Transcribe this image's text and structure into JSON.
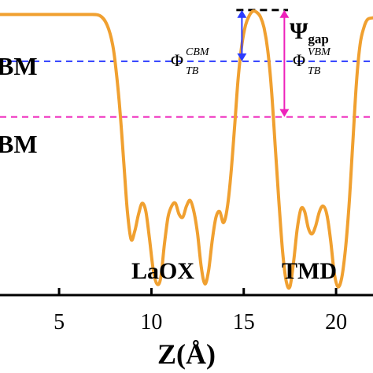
{
  "chart_data": {
    "type": "line",
    "xlabel": "Z(Å)",
    "ylabel": "",
    "xlim": [
      1.8,
      22.0
    ],
    "ylim": [
      -4.2,
      1.1
    ],
    "x_ticks": [
      5,
      10,
      15,
      20
    ],
    "x_tick_labels": [
      "5",
      "10",
      "15",
      "20"
    ],
    "grid": false,
    "series": [
      {
        "color": "#f0a030",
        "x": [
          1.8,
          2.5,
          3.5,
          4.5,
          5.5,
          6.5,
          7.2,
          7.6,
          7.9,
          8.1,
          8.3,
          8.5,
          8.7,
          8.9,
          9.1,
          9.3,
          9.5,
          9.7,
          9.9,
          10.1,
          10.3,
          10.5,
          10.7,
          10.9,
          11.1,
          11.3,
          11.5,
          11.7,
          11.9,
          12.1,
          12.3,
          12.5,
          12.7,
          12.9,
          13.1,
          13.3,
          13.5,
          13.7,
          13.9,
          14.1,
          14.3,
          14.5,
          14.7,
          14.9,
          15.1,
          15.3,
          15.5,
          15.7,
          15.9,
          16.1,
          16.3,
          16.5,
          16.7,
          16.9,
          17.1,
          17.3,
          17.5,
          17.7,
          17.9,
          18.1,
          18.3,
          18.5,
          18.7,
          18.9,
          19.1,
          19.3,
          19.5,
          19.7,
          19.9,
          20.1,
          20.3,
          20.5,
          20.7,
          20.9,
          21.1,
          21.3,
          21.5,
          21.7,
          22.0
        ],
        "y": [
          0.84,
          0.84,
          0.84,
          0.84,
          0.84,
          0.84,
          0.82,
          0.65,
          0.3,
          -0.2,
          -0.9,
          -1.8,
          -2.7,
          -3.2,
          -3.05,
          -2.75,
          -2.55,
          -2.7,
          -3.2,
          -3.75,
          -4.0,
          -3.9,
          -3.3,
          -2.8,
          -2.6,
          -2.55,
          -2.75,
          -2.8,
          -2.6,
          -2.5,
          -2.7,
          -3.1,
          -3.7,
          -4.0,
          -3.75,
          -3.2,
          -2.8,
          -2.7,
          -2.9,
          -2.65,
          -2.05,
          -1.2,
          -0.3,
          0.3,
          0.65,
          0.82,
          0.9,
          0.88,
          0.8,
          0.6,
          0.2,
          -0.5,
          -1.5,
          -2.5,
          -3.4,
          -3.95,
          -4.05,
          -3.6,
          -3.0,
          -2.65,
          -2.7,
          -3.0,
          -3.1,
          -2.95,
          -2.7,
          -2.6,
          -2.75,
          -3.2,
          -3.8,
          -4.05,
          -3.9,
          -3.4,
          -2.6,
          -1.5,
          -0.4,
          0.3,
          0.6,
          0.75,
          0.78
        ]
      }
    ],
    "reference_lines": [
      {
        "kind": "CBM",
        "y": 0.0,
        "color": "#2b3bff",
        "style": "dashed"
      },
      {
        "kind": "VBM",
        "y": -1.0,
        "color": "#ee22bb",
        "style": "dashed"
      },
      {
        "kind": "gap",
        "y": 0.92,
        "x_range": [
          14.6,
          17.4
        ],
        "color": "#000000",
        "style": "dashed"
      }
    ],
    "annotations": {
      "band_label_top": "BM",
      "band_label_bottom": "BM",
      "region_1": "LaOX",
      "region_2": "TMD",
      "psi_symbol": "Ψ",
      "psi_sub": "gap",
      "phi_cbm_main": "Φ",
      "phi_cbm_sup": "CBM",
      "phi_cbm_sub": "TB",
      "phi_vbm_main": "Φ",
      "phi_vbm_sup": "VBM",
      "phi_vbm_sub": "TB",
      "phi_cbm_color": "#2b3bff",
      "phi_vbm_color": "#ee22bb",
      "phi_cbm_x": 14.9,
      "phi_vbm_x": 17.2
    }
  }
}
